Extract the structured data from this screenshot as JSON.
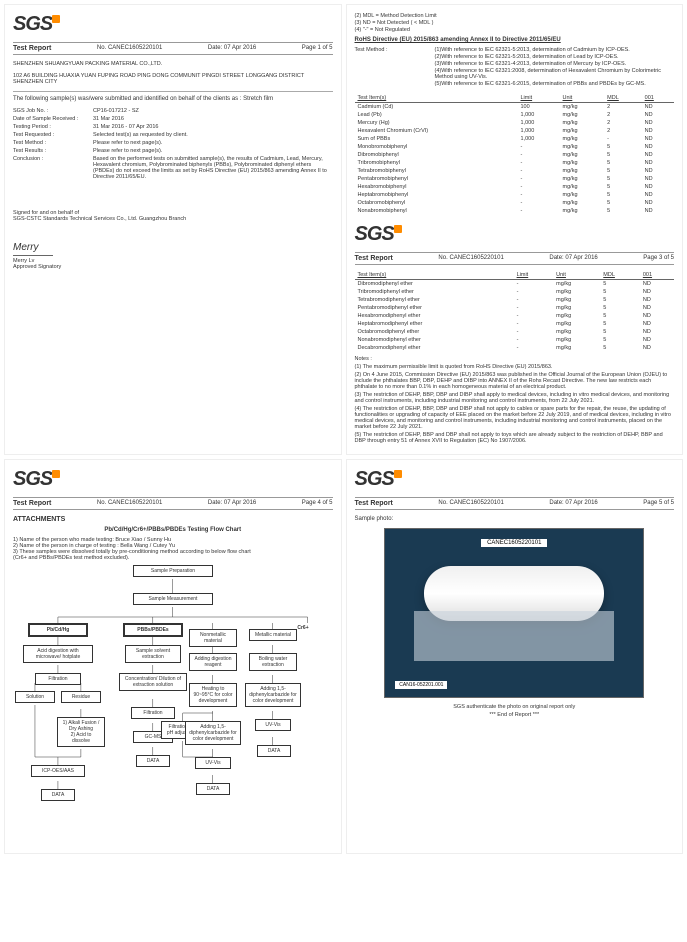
{
  "logo_text": "SGS",
  "report": {
    "title": "Test Report",
    "no_label": "No.",
    "no": "CANEC1605220101",
    "date_label": "Date:",
    "date": "07 Apr 2016"
  },
  "pages": {
    "p1": "Page 1 of 5",
    "p3": "Page 3 of 5",
    "p4": "Page 4 of 5",
    "p5": "Page 5 of 5"
  },
  "company": {
    "name": "SHENZHEN SHUANGYUAN PACKING MATERIAL CO.,LTD.",
    "address": "102 A6 BUILDING HUAXIA YUAN FUPING ROAD PING DONG COMMUNIT PINGDI STREET LONGGANG DISTRICT SHENZHEN CITY"
  },
  "page1": {
    "intro": "The following sample(s) was/were submitted and identified on behalf of the clients as : Stretch film",
    "rows": [
      {
        "label": "SGS Job No. :",
        "val": "CP16-017212 - SZ"
      },
      {
        "label": "Date of Sample Received :",
        "val": "31 Mar 2016"
      },
      {
        "label": "Testing Period :",
        "val": "31 Mar 2016 - 07 Apr 2016"
      },
      {
        "label": "Test Requested :",
        "val": "Selected test(s) as requested by client."
      },
      {
        "label": "Test Method :",
        "val": "Please refer to next page(s)."
      },
      {
        "label": "Test Results :",
        "val": "Please refer to next page(s)."
      }
    ],
    "conclusion_label": "Conclusion :",
    "conclusion": "Based on the performed tests on submitted sample(s), the results of Cadmium, Lead, Mercury, Hexavalent chromium, Polybrominated biphenyls (PBBs), Polybrominated diphenyl ethers (PBDEs) do not exceed  the limits as set by RoHS Directive (EU) 2015/863 amending Annex II to Directive 2011/65/EU.",
    "signed_for": "Signed for and on behalf of",
    "signed_org": "SGS-CSTC Standards Technical Services Co., Ltd. Guangzhou Branch",
    "sig_name": "Merry",
    "sig_person": "Merry Lv",
    "sig_title": "Approved Signatory"
  },
  "page2": {
    "mdl_notes": [
      "(2) MDL = Method Detection Limit",
      "(3) ND = Not Detected ( < MDL )",
      "(4) \"-\" = Not Regulated"
    ],
    "directive": "RoHS Directive (EU) 2015/863 amending Annex II to Directive 2011/65/EU",
    "method_label": "Test Method :",
    "methods": [
      "(1)With reference to IEC 62321-5:2013, determination of Cadmium by ICP-OES.",
      "(2)With reference to IEC 62321-5:2013, determination of Lead by ICP-OES.",
      "(3)With reference to IEC 62321-4:2013, determination of Mercury by ICP-OES.",
      "(4)With reference to IEC 62321:2008, determination of Hexavalent Chromium by Colorimetric Method using UV-Vis.",
      "(5)With reference to IEC 62321-6:2015, determination of PBBs and PBDEs by GC-MS."
    ],
    "table": {
      "headers": [
        "Test Item(s)",
        "Limit",
        "Unit",
        "MDL",
        "001"
      ],
      "rows": [
        [
          "Cadmium (Cd)",
          "100",
          "mg/kg",
          "2",
          "ND"
        ],
        [
          "Lead (Pb)",
          "1,000",
          "mg/kg",
          "2",
          "ND"
        ],
        [
          "Mercury (Hg)",
          "1,000",
          "mg/kg",
          "2",
          "ND"
        ],
        [
          "Hexavalent Chromium (CrVI)",
          "1,000",
          "mg/kg",
          "2",
          "ND"
        ],
        [
          "Sum of PBBs",
          "1,000",
          "mg/kg",
          "-",
          "ND"
        ],
        [
          "Monobromobiphenyl",
          "-",
          "mg/kg",
          "5",
          "ND"
        ],
        [
          "Dibromobiphenyl",
          "-",
          "mg/kg",
          "5",
          "ND"
        ],
        [
          "Tribromobiphenyl",
          "-",
          "mg/kg",
          "5",
          "ND"
        ],
        [
          "Tetrabromobiphenyl",
          "-",
          "mg/kg",
          "5",
          "ND"
        ],
        [
          "Pentabromobiphenyl",
          "-",
          "mg/kg",
          "5",
          "ND"
        ],
        [
          "Hexabromobiphenyl",
          "-",
          "mg/kg",
          "5",
          "ND"
        ],
        [
          "Heptabromobiphenyl",
          "-",
          "mg/kg",
          "5",
          "ND"
        ],
        [
          "Octabromobiphenyl",
          "-",
          "mg/kg",
          "5",
          "ND"
        ],
        [
          "Nonabromobiphenyl",
          "-",
          "mg/kg",
          "5",
          "ND"
        ]
      ]
    }
  },
  "page3": {
    "table": {
      "headers": [
        "Test Item(s)",
        "Limit",
        "Unit",
        "MDL",
        "001"
      ],
      "rows": [
        [
          "Dibromodiphenyl ether",
          "-",
          "mg/kg",
          "5",
          "ND"
        ],
        [
          "Tribromodiphenyl ether",
          "-",
          "mg/kg",
          "5",
          "ND"
        ],
        [
          "Tetrabromodiphenyl ether",
          "-",
          "mg/kg",
          "5",
          "ND"
        ],
        [
          "Pentabromodiphenyl ether",
          "-",
          "mg/kg",
          "5",
          "ND"
        ],
        [
          "Hexabromodiphenyl ether",
          "-",
          "mg/kg",
          "5",
          "ND"
        ],
        [
          "Heptabromodiphenyl ether",
          "-",
          "mg/kg",
          "5",
          "ND"
        ],
        [
          "Octabromodiphenyl ether",
          "-",
          "mg/kg",
          "5",
          "ND"
        ],
        [
          "Nonabromodiphenyl ether",
          "-",
          "mg/kg",
          "5",
          "ND"
        ],
        [
          "Decabromodiphenyl ether",
          "-",
          "mg/kg",
          "5",
          "ND"
        ]
      ]
    },
    "notes_label": "Notes :",
    "notes": [
      "(1) The maximum permissible limit is quoted from RoHS Directive (EU) 2015/863.",
      "(2) On 4 June  2015, Commission Directive (EU) 2015/863 was published in the Official Journal of the European Union (OJEU) to include the phthalates BBP, DBP, DEHP and DIBP into ANNEX II of the Rohs Recast Directive. The new law restricts each phthalate to no more than 0.1% in each homogeneous material of an electrical product.",
      "(3) The restriction of DEHP, BBP, DBP and DIBP shall apply to medical devices, including in vitro medical devices, and monitoring and control instruments, including industrial monitoring and control instruments, from 22 July 2021.",
      "(4) The restriction of DEHP, BBP, DBP and DIBP shall not apply to cables or spare parts for the repair, the reuse, the updating of functionalities or upgrading of capacity of EEE placed on the market before 22 July 2019, and of medical devices, including in vitro medical devices, and monitoring and control instruments, including industrial monitoring and control instruments, placed on the market before 22 July 2021.",
      "(5) The restriction of DEHP, BBP and DBP shall not apply to toys which are already subject to the restriction of DEHP, BBP and DBP through entry 51 of Annex XVII to Regulation (EC) No 1907/2006."
    ]
  },
  "page4": {
    "attachments": "ATTACHMENTS",
    "chart_title_1": "Pb/Cd/Hg/Cr6+/PBBs/PBDEs",
    "chart_title_2": " Testing Flow Chart",
    "notes": [
      "1) Name of the person who made testing:  Bruce Xiao / Sunny Hu",
      "2) Name of the person in charge of testing : Bella Wang / Cutey Yu",
      "3) These samples were dissolved totally by  pre-conditioning method according to below flow chart",
      "    (Cr6+ and PBBs/PBDEs test method excluded)."
    ],
    "nodes": {
      "prep": "Sample Preparation",
      "meas": "Sample Measurement",
      "h1": "Pb/Cd/Hg",
      "h2": "PBBs/PBDEs",
      "h3": "Cr6+",
      "acid": "Acid digestion with microwave/ hotplate",
      "filt1": "Filtration",
      "sol": "Solution",
      "res": "Residue",
      "alk": "1) Alkali Fusion / Dry Ashing\n2) Acid to dissolve",
      "icp": "ICP-OES/AAS",
      "data": "DATA",
      "solv": "Sample solvent extraction",
      "conc": "Concentration/ Dilution of extraction solution",
      "filt2": "Filtration",
      "gcms": "GC-MS",
      "nonm": "Nonmetallic material",
      "metal": "Metallic material",
      "addr": "Adding digestion reagent",
      "boil": "Boiling water extraction",
      "heat": "Heating to 90~95°C for color development",
      "add15a": "Adding 1,5-diphenylcarbazide for color development",
      "filtph": "Filtration and pH adjustment",
      "add15b": "Adding 1,5-diphenylcarbazide for color development",
      "uv": "UV-Vis"
    }
  },
  "page5": {
    "sample_label": "Sample photo:",
    "photo_top": "CANEC1605220101",
    "photo_bot": "CAN16-052201.001",
    "auth": "SGS authenticate the photo on original report only",
    "end": "*** End of Report ***"
  }
}
